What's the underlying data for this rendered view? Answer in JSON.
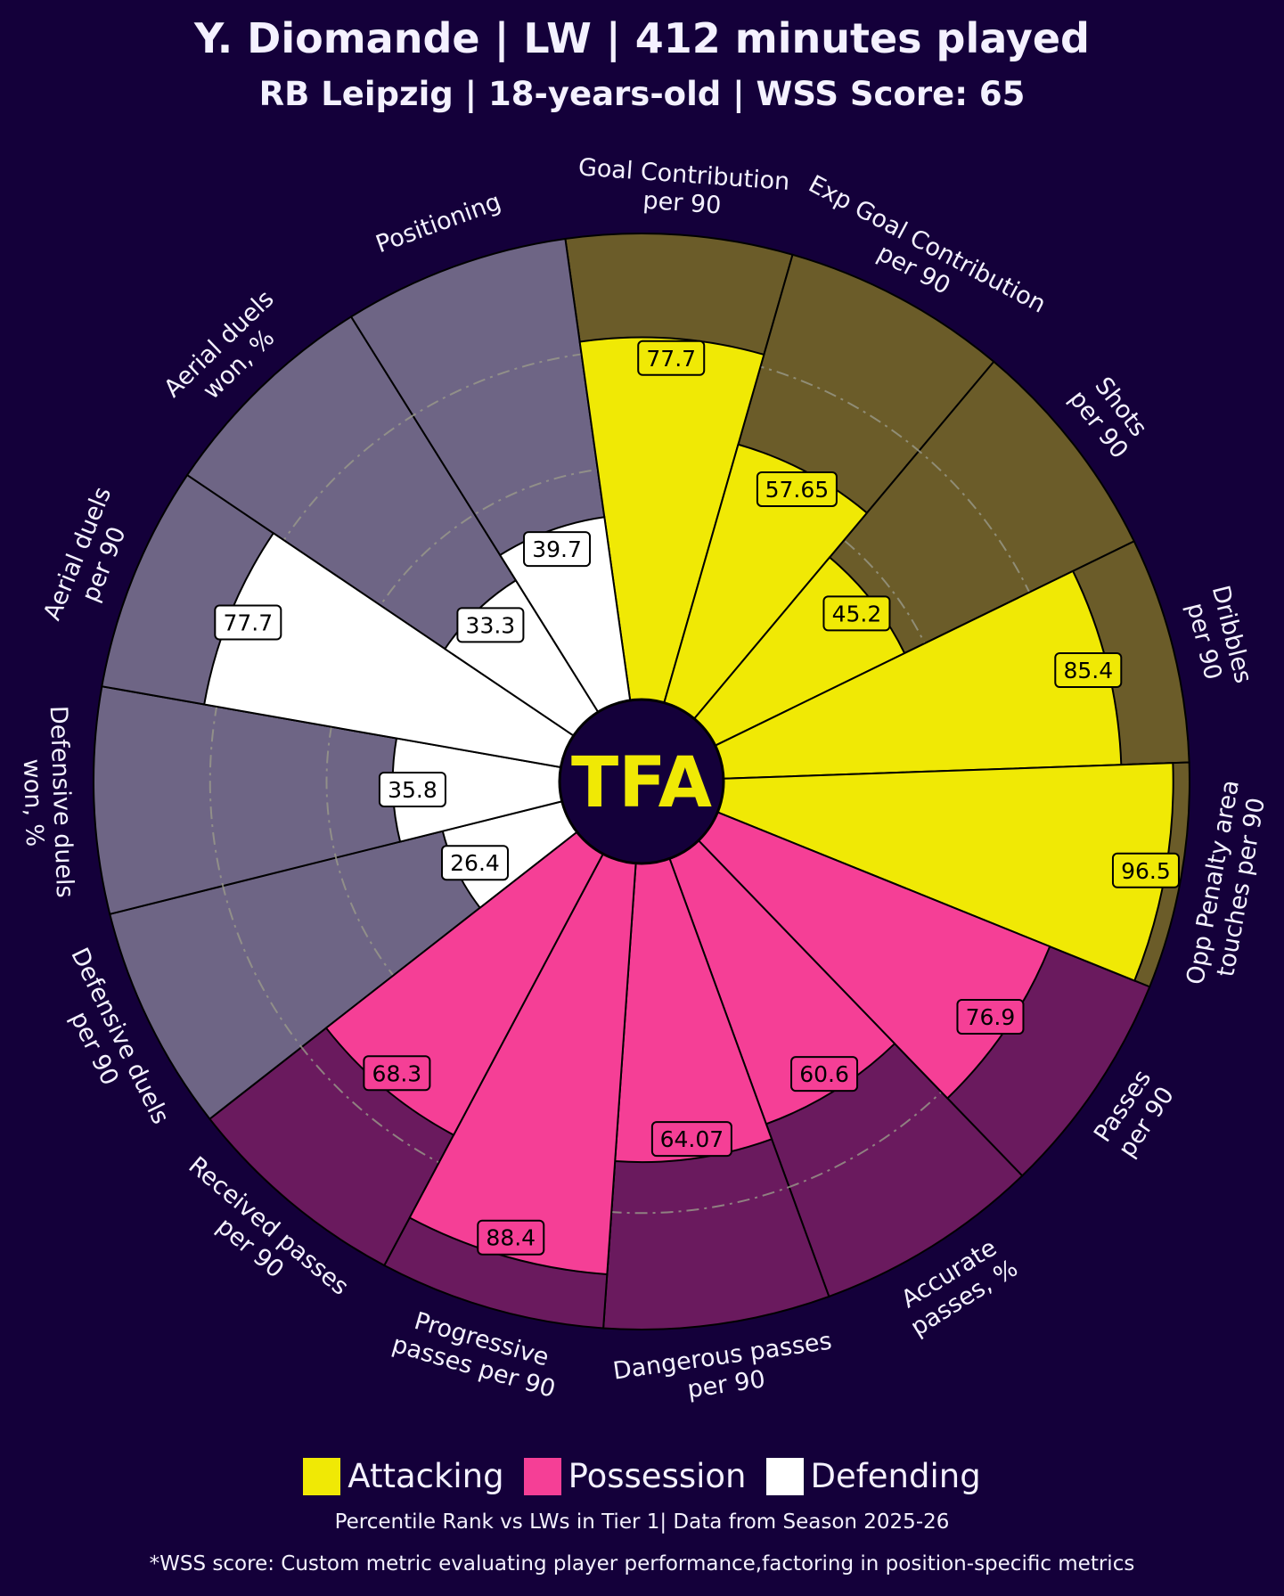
{
  "header": {
    "title": "Y. Diomande | LW | 412 minutes played",
    "subtitle": "RB Leipzig | 18-years-old | WSS Score: 65"
  },
  "logo": {
    "text": "TFA"
  },
  "legend": [
    {
      "label": "Attacking",
      "color": "#f0e905"
    },
    {
      "label": "Possession",
      "color": "#f53f96"
    },
    {
      "label": "Defending",
      "color": "#ffffff"
    }
  ],
  "footnotes": {
    "line1": "Percentile Rank vs LWs in Tier 1| Data from Season 2025-26",
    "line2": "*WSS score: Custom metric evaluating player performance,factoring in position-specific metrics"
  },
  "colors": {
    "background": "#14003a",
    "attacking": "#f0e905",
    "attacking_bg": "#6b5c29",
    "possession": "#f53f96",
    "possession_bg": "#6a1a5e",
    "defending": "#ffffff",
    "defending_bg": "#6e6585"
  },
  "chart_data": {
    "type": "pie",
    "subtype": "polar-pizza",
    "value_range": [
      0,
      100
    ],
    "gridlines": [
      25,
      50,
      75
    ],
    "metrics": [
      {
        "label": "Goal Contribution\nper 90",
        "value": 77.7,
        "display": "77.7",
        "group": "Attacking"
      },
      {
        "label": "Exp Goal Contribution\nper 90",
        "value": 57.65,
        "display": "57.65",
        "group": "Attacking"
      },
      {
        "label": "Shots\nper 90",
        "value": 45.2,
        "display": "45.2",
        "group": "Attacking"
      },
      {
        "label": "Dribbles\nper 90",
        "value": 85.4,
        "display": "85.4",
        "group": "Attacking"
      },
      {
        "label": "Opp Penalty area\ntouches per 90",
        "value": 96.5,
        "display": "96.5",
        "group": "Attacking"
      },
      {
        "label": "Passes\nper 90",
        "value": 76.9,
        "display": "76.9",
        "group": "Possession"
      },
      {
        "label": "Accurate\npasses, %",
        "value": 60.6,
        "display": "60.6",
        "group": "Possession"
      },
      {
        "label": "Dangerous passes\nper 90",
        "value": 64.07,
        "display": "64.07",
        "group": "Possession"
      },
      {
        "label": "Progressive\npasses per 90",
        "value": 88.4,
        "display": "88.4",
        "group": "Possession"
      },
      {
        "label": "Received passes\nper 90",
        "value": 68.3,
        "display": "68.3",
        "group": "Possession"
      },
      {
        "label": "Defensive duels\nper 90",
        "value": 26.4,
        "display": "26.4",
        "group": "Defending"
      },
      {
        "label": "Defensive duels\nwon, %",
        "value": 35.8,
        "display": "35.8",
        "group": "Defending"
      },
      {
        "label": "Aerial duels\nper 90",
        "value": 77.7,
        "display": "77.7",
        "group": "Defending"
      },
      {
        "label": "Aerial duels\nwon, %",
        "value": 33.3,
        "display": "33.3",
        "group": "Defending"
      },
      {
        "label": "Positioning",
        "value": 39.7,
        "display": "39.7",
        "group": "Defending"
      }
    ]
  }
}
